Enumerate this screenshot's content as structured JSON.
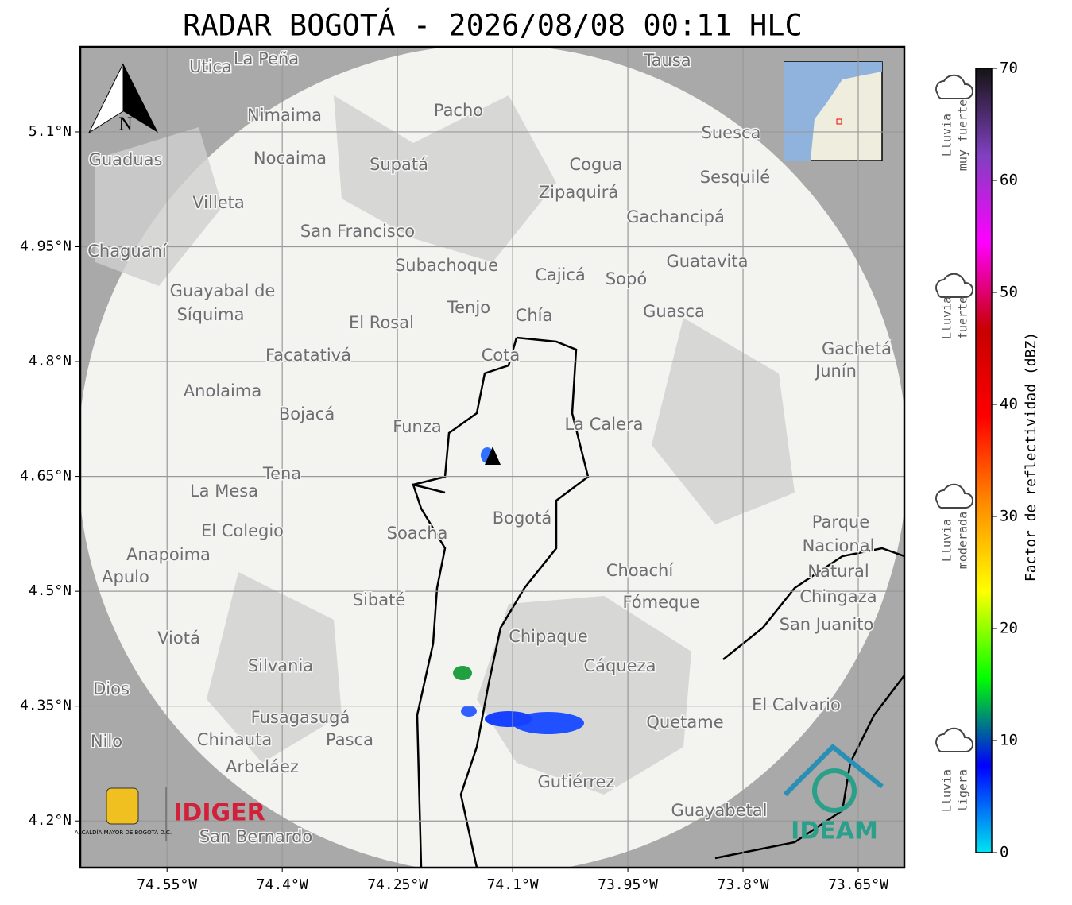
{
  "map": {
    "title": "RADAR BOGOTÁ - 2026/08/08 00:11 HLC",
    "xlim": [
      -74.663,
      -73.59
    ],
    "ylim": [
      4.139,
      5.211
    ],
    "xticks": [
      {
        "value": -74.55,
        "label": "74.55°W"
      },
      {
        "value": -74.4,
        "label": "74.4°W"
      },
      {
        "value": -74.25,
        "label": "74.25°W"
      },
      {
        "value": -74.1,
        "label": "74.1°W"
      },
      {
        "value": -73.95,
        "label": "73.95°W"
      },
      {
        "value": -73.8,
        "label": "73.8°W"
      },
      {
        "value": -73.65,
        "label": "73.65°W"
      }
    ],
    "yticks": [
      {
        "value": 5.1,
        "label": "5.1°N"
      },
      {
        "value": 4.95,
        "label": "4.95°N"
      },
      {
        "value": 4.8,
        "label": "4.8°N"
      },
      {
        "value": 4.65,
        "label": "4.65°N"
      },
      {
        "value": 4.5,
        "label": "4.5°N"
      },
      {
        "value": 4.35,
        "label": "4.35°N"
      },
      {
        "value": 4.2,
        "label": "4.2°N"
      }
    ],
    "grid": true,
    "north": "N",
    "places": [
      "La Peña",
      "Utica",
      "Tausa",
      "Pacho",
      "Nimaima",
      "Nocaima",
      "Supatá",
      "Guaduas",
      "Suesca",
      "Cogua",
      "Sesquilé",
      "Zipaquirá",
      "Villeta",
      "Gachancipá",
      "San Francisco",
      "Chaguaní",
      "Guatavita",
      "Subachoque",
      "Cajicá",
      "Sopó",
      "Guayabal de",
      "Síquima",
      "Tenjo",
      "Chía",
      "Guasca",
      "El Rosal",
      "Facatativá",
      "Cota",
      "Gachetá",
      "Junín",
      "Anolaima",
      "Bojacá",
      "Funza",
      "La Calera",
      "Tena",
      "La Mesa",
      "Bogotá",
      "Parque",
      "Nacional",
      "Natural",
      "Chingaza",
      "El Colegio",
      "Soacha",
      "Anapoima",
      "Apulo",
      "Choachí",
      "Sibaté",
      "Fómeque",
      "San Juanito",
      "Viotá",
      "Chipaque",
      "Silvania",
      "Cáqueza",
      "Dios",
      "El Calvario",
      "Fusagasugá",
      "Quetame",
      "Nilo",
      "Chinauta",
      "Pasca",
      "Arbeláez",
      "Gutiérrez",
      "Guayabetal",
      "San Bernardo"
    ],
    "logos": {
      "alcaldia": "ALCALDÍA MAYOR DE BOGOTÁ D.C.",
      "idiger": "IDIGER",
      "ideam": "IDEAM"
    }
  },
  "colorbar": {
    "label": "Factor de reflectividad (dBZ)",
    "lim": [
      0,
      70
    ],
    "ticks": [
      0,
      10,
      20,
      30,
      40,
      50,
      60,
      70
    ],
    "colors": [
      "#00e5f0",
      "#0000ff",
      "#00ff00",
      "#ffff00",
      "#ff8c00",
      "#ff0000",
      "#c80000",
      "#ff00ff",
      "#8040c0",
      "#141414"
    ],
    "categories": [
      [
        "Lluvia",
        "muy fuerte"
      ],
      [
        "Lluvia",
        "fuerte"
      ],
      [
        "Lluvia",
        "moderada"
      ],
      [
        "Lluvia",
        "ligera"
      ]
    ]
  }
}
